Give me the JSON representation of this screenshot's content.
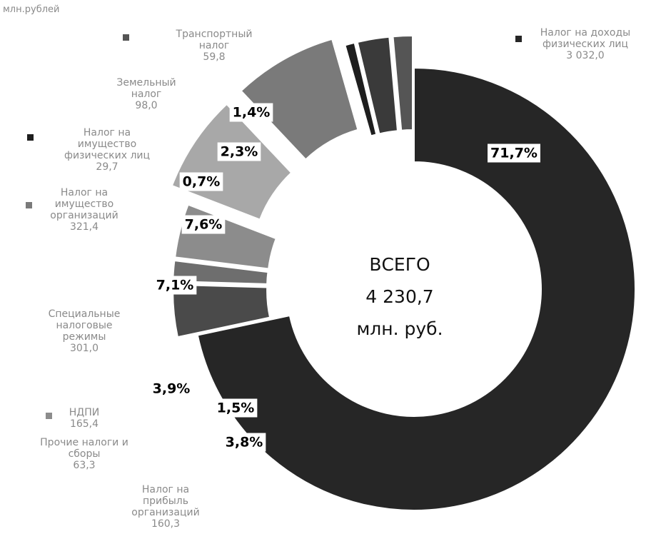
{
  "chart_data": {
    "type": "pie",
    "donut": true,
    "unit_label": "млн.рублей",
    "center_text": [
      "ВСЕГО",
      "4 230,7",
      "млн. руб."
    ],
    "categories": [
      "Налог на доходы\nфизических лиц",
      "Налог на\nприбыль\nорганизаций",
      "Прочие налоги и\nсборы",
      "НДПИ",
      "Специальные\nналоговые\nрежимы",
      "Налог на\nимущество\nорганизаций",
      "Налог на\nимущество\nфизических лиц",
      "Земельный\nналог",
      "Транспортный\nналог"
    ],
    "values": [
      3032.0,
      160.3,
      63.3,
      165.4,
      301.0,
      321.4,
      29.7,
      98.0,
      59.8
    ],
    "value_labels": [
      "3 032,0",
      "160,3",
      "63,3",
      "165,4",
      "301,0",
      "321,4",
      "29,7",
      "98,0",
      "59,8"
    ],
    "shares": [
      71.7,
      3.8,
      1.5,
      3.9,
      7.1,
      7.6,
      0.7,
      2.3,
      1.4
    ],
    "share_labels": [
      "71,7%",
      "3,8%",
      "1,5%",
      "3,9%",
      "7,1%",
      "7,6%",
      "0,7%",
      "2,3%",
      "1,4%"
    ],
    "colors": [
      "#262626",
      "#4a4a4a",
      "#6e6e6e",
      "#8c8c8c",
      "#a8a8a8",
      "#7a7a7a",
      "#1e1e1e",
      "#3a3a3a",
      "#555555"
    ]
  }
}
